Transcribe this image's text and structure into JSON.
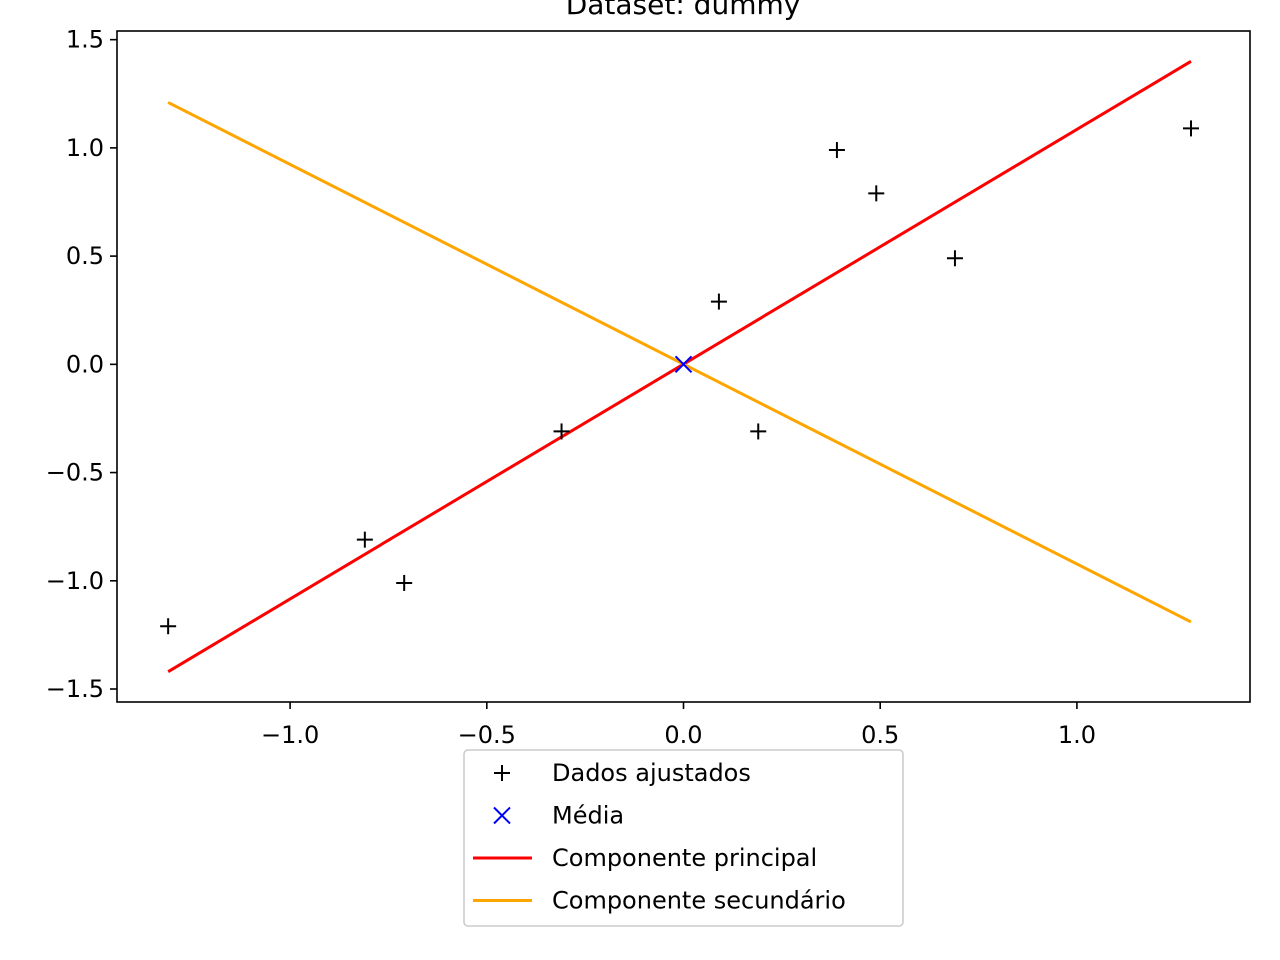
{
  "chart_data": {
    "type": "scatter",
    "title": "Dataset: dummy",
    "xlabel": "",
    "ylabel": "",
    "xlim": [
      -1.44,
      1.44
    ],
    "ylim": [
      -1.56,
      1.54
    ],
    "xticks": [
      -1.0,
      -0.5,
      0.0,
      0.5,
      1.0
    ],
    "xtick_labels": [
      "−1.0",
      "−0.5",
      "0.0",
      "0.5",
      "1.0"
    ],
    "yticks": [
      -1.5,
      -1.0,
      -0.5,
      0.0,
      0.5,
      1.0,
      1.5
    ],
    "ytick_labels": [
      "−1.5",
      "−1.0",
      "−0.5",
      "0.0",
      "0.5",
      "1.0",
      "1.5"
    ],
    "grid": false,
    "legend_position": "below",
    "series": [
      {
        "name": "Dados ajustados",
        "kind": "scatter",
        "marker": "+",
        "color": "#000000",
        "points": [
          [
            -1.31,
            -1.21
          ],
          [
            -0.81,
            -0.81
          ],
          [
            -0.71,
            -1.01
          ],
          [
            -0.31,
            -0.31
          ],
          [
            0.09,
            0.29
          ],
          [
            0.19,
            -0.31
          ],
          [
            0.39,
            0.99
          ],
          [
            0.49,
            0.79
          ],
          [
            0.69,
            0.49
          ],
          [
            1.29,
            1.09
          ]
        ]
      },
      {
        "name": "Média",
        "kind": "scatter",
        "marker": "x",
        "color": "#0000ff",
        "points": [
          [
            0.0,
            0.0
          ]
        ]
      },
      {
        "name": "Componente principal",
        "kind": "line",
        "color": "#ff0000",
        "points": [
          [
            -1.31,
            -1.42
          ],
          [
            1.29,
            1.4
          ]
        ]
      },
      {
        "name": "Componente secundário",
        "kind": "line",
        "color": "#ffa500",
        "points": [
          [
            -1.31,
            1.21
          ],
          [
            1.29,
            -1.19
          ]
        ]
      }
    ]
  }
}
